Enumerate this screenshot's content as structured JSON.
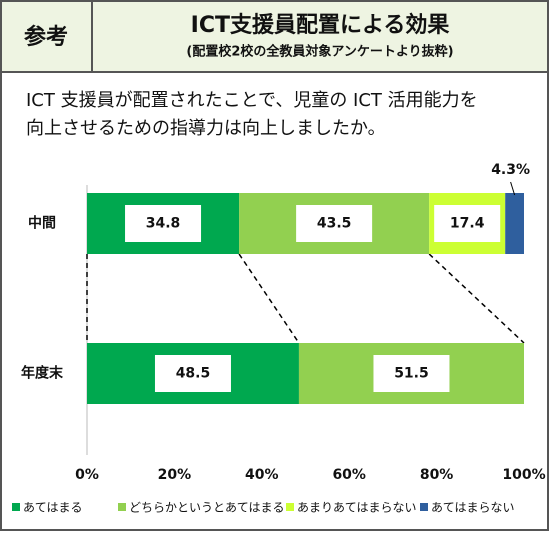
{
  "header": {
    "tag": "参考",
    "title": "ICT支援員配置による効果",
    "subtitle": "(配置校2校の全教員対象アンケートより抜粋)"
  },
  "question": [
    "ICT 支援員が配置されたことで、児童の ICT 活用能力を",
    "向上させるための指導力は向上しましたか。"
  ],
  "chart_data": {
    "type": "bar",
    "orientation": "horizontal",
    "stacked": true,
    "categories": [
      "中間",
      "年度末"
    ],
    "series": [
      {
        "name": "あてはまる",
        "color": "#00a84f",
        "values": [
          34.8,
          48.5
        ]
      },
      {
        "name": "どちらかというとあてはまる",
        "color": "#92d050",
        "values": [
          43.5,
          51.5
        ]
      },
      {
        "name": "あまりあてはまらない",
        "color": "#ccff33",
        "values": [
          17.4,
          null
        ]
      },
      {
        "name": "あてはまらない",
        "color": "#2f5f9e",
        "values": [
          4.3,
          null
        ],
        "value_labels": [
          "4.3%",
          null
        ]
      }
    ],
    "xlim": [
      0,
      100
    ],
    "xticks": [
      {
        "value": 0,
        "label": "0%"
      },
      {
        "value": 20,
        "label": "20%"
      },
      {
        "value": 40,
        "label": "40%"
      },
      {
        "value": 60,
        "label": "60%"
      },
      {
        "value": 80,
        "label": "80%"
      },
      {
        "value": 100,
        "label": "100%"
      }
    ]
  }
}
